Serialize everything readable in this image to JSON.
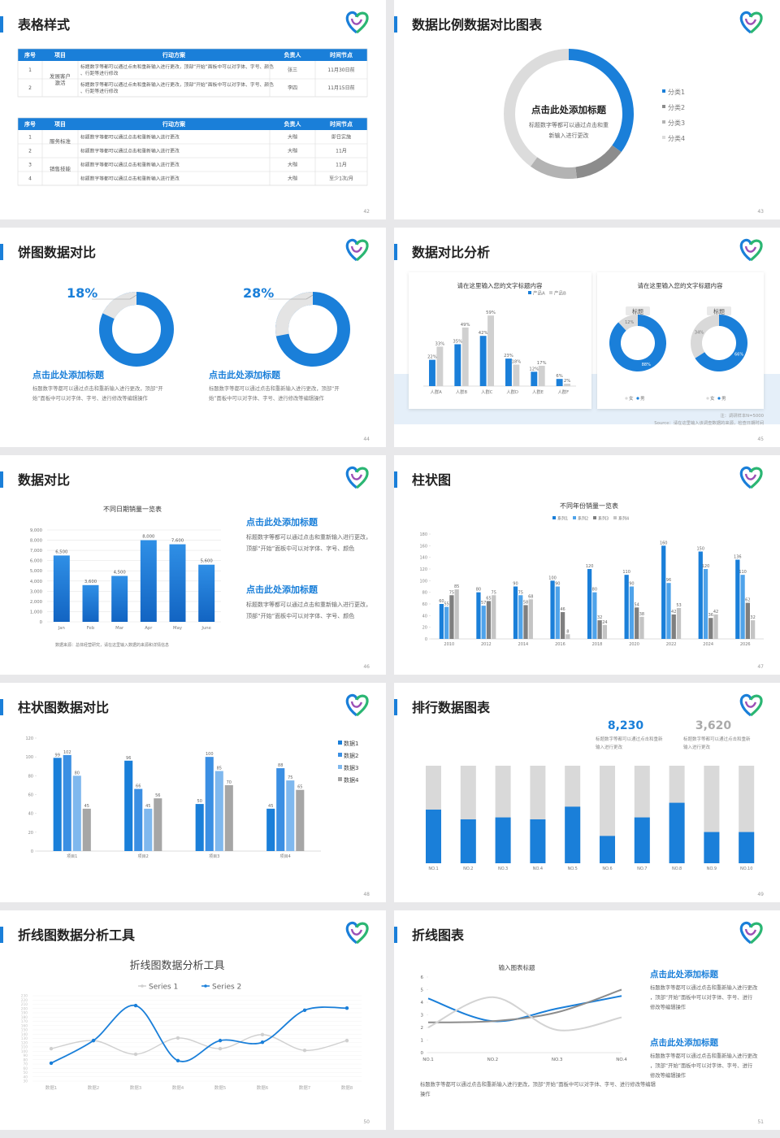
{
  "slides": [
    {
      "title": "表格样式",
      "page": "42",
      "tables": [
        {
          "headers": [
            "序号",
            "项目",
            "行动方案",
            "负责人",
            "时间节点"
          ],
          "groups": [
            {
              "name": "发展客户激活",
              "rows": [
                [
                  "1",
                  "标题数字等都可以通过点击和重新输入进行更改，顶部“开始”面板中可以对字体、字号、颜色、行距等进行修改",
                  "张三",
                  "11月30日前"
                ],
                [
                  "2",
                  "标题数字等都可以通过点击和重新输入进行更改，顶部“开始”面板中可以对字体、字号、颜色、行距等进行修改",
                  "李四",
                  "11月15日前"
                ]
              ]
            }
          ]
        },
        {
          "headers": [
            "序号",
            "项目",
            "行动方案",
            "负责人",
            "时间节点"
          ],
          "groups": [
            {
              "name": "服务标准",
              "rows": [
                [
                  "1",
                  "标题数字等都可以通过点击和重新输入进行更改",
                  "大咖",
                  "即日实施"
                ],
                [
                  "2",
                  "标题数字等都可以通过点击和重新输入进行更改",
                  "大咖",
                  "11月"
                ]
              ]
            },
            {
              "name": "销售技能",
              "rows": [
                [
                  "3",
                  "标题数字等都可以通过点击和重新输入进行更改",
                  "大咖",
                  "11月"
                ],
                [
                  "4",
                  "标题数字等都可以通过点击和重新输入进行更改",
                  "大咖",
                  "至少1次/月"
                ]
              ]
            }
          ]
        }
      ]
    },
    {
      "title": "数据比例数据对比图表",
      "page": "43",
      "chart": {
        "type": "donut",
        "title": "点击此处添加标题",
        "subtitle": "标题数字等都可以通过点击和重新输入进行更改",
        "categories": [
          "分类1",
          "分类2",
          "分类3",
          "分类4"
        ],
        "values": [
          35,
          13,
          12,
          40
        ],
        "colors": [
          "#1a7fd9",
          "#8c8c8c",
          "#b3b3b3",
          "#dcdcdc"
        ]
      }
    },
    {
      "title": "饼图数据对比",
      "page": "44",
      "items": [
        {
          "value": 18,
          "value_label": "18%",
          "title": "点击此处添加标题",
          "text": "标题数字等都可以通过点击和重新输入进行更改，顶部“开始”面板中可以对字体、字号、进行修改等编辑操作"
        },
        {
          "value": 28,
          "value_label": "28%",
          "title": "点击此处添加标题",
          "text": "标题数字等都可以通过点击和重新输入进行更改，顶部“开始”面板中可以对字体、字号、进行修改等编辑操作"
        }
      ]
    },
    {
      "title": "数据对比分析",
      "page": "45",
      "bar_chart": {
        "type": "bar",
        "title": "请在这里输入您的文字标题内容",
        "categories": [
          "人群A",
          "人群B",
          "人群C",
          "人群D",
          "人群E",
          "人群F"
        ],
        "ylim": [
          0,
          70
        ],
        "series": [
          {
            "name": "产品A",
            "color": "#1a7fd9",
            "values": [
              22,
              35,
              42,
              23,
              12,
              6
            ],
            "value_labels": [
              "22%",
              "35%",
              "42%",
              "23%",
              "12%",
              "6%"
            ]
          },
          {
            "name": "产品B",
            "color": "#d0d0d0",
            "values": [
              33,
              49,
              59,
              18,
              17,
              2
            ],
            "value_labels": [
              "33%",
              "49%",
              "59%",
              "18%",
              "17%",
              "2%"
            ]
          }
        ]
      },
      "donut_panel": {
        "title": "请在这里输入您的文字标题内容",
        "legend": [
          {
            "name": "女",
            "color": "#d9d9d9"
          },
          {
            "name": "男",
            "color": "#1a7fd9"
          }
        ],
        "donuts": [
          {
            "label": "标题",
            "values": [
              12,
              88
            ],
            "value_labels": [
              "12%",
              "88%"
            ]
          },
          {
            "label": "标题",
            "values": [
              34,
              66
            ],
            "value_labels": [
              "34%",
              "66%"
            ]
          }
        ]
      },
      "notes": [
        "注：调研样本N=5000",
        "Source：请在这里输入该调查数据的来源，检查日期时间"
      ]
    },
    {
      "title": "数据对比",
      "page": "46",
      "chart": {
        "type": "bar",
        "title": "不同日期销量一览表",
        "categories": [
          "Jan",
          "Feb",
          "Mar",
          "Apr",
          "May",
          "June"
        ],
        "values": [
          6500,
          3600,
          4500,
          8000,
          7600,
          5600
        ],
        "value_labels": [
          "6,500",
          "3,600",
          "4,500",
          "8,000",
          "7,600",
          "5,600"
        ],
        "color": "#1a7fd9",
        "ylim": [
          0,
          9000
        ],
        "yticks": [
          0,
          {
            "value": 1000,
            "label": "1,000"
          },
          {
            "value": 2000,
            "label": "2,000"
          },
          {
            "value": 3000,
            "label": "3,000"
          },
          {
            "value": 4000,
            "label": "4,000"
          },
          {
            "value": 5000,
            "label": "5,000"
          },
          {
            "value": 6000,
            "label": "6,000"
          },
          {
            "value": 7000,
            "label": "7,000"
          },
          {
            "value": 8000,
            "label": "8,000"
          },
          {
            "value": 9000,
            "label": "9,000"
          }
        ],
        "grid": true
      },
      "note": "数据来源：总体经营研究，请在这里输入数据的来源和详情信息",
      "text_blocks": [
        {
          "title": "点击此处添加标题",
          "text": "标题数字等都可以通过点击和重新输入进行更改，顶部“开始”面板中可以对字体、字号、颜色"
        },
        {
          "title": "点击此处添加标题",
          "text": "标题数字等都可以通过点击和重新输入进行更改，顶部“开始”面板中可以对字体、字号、颜色"
        }
      ]
    },
    {
      "title": "柱状图",
      "page": "47",
      "chart": {
        "type": "bar",
        "title": "不同年份销量一览表",
        "categories": [
          "2010",
          "2012",
          "2014",
          "2016",
          "2018",
          "2020",
          "2022",
          "2024",
          "2026"
        ],
        "ylim": [
          0,
          180
        ],
        "yticks": [
          0,
          20,
          40,
          60,
          80,
          100,
          120,
          140,
          160,
          180
        ],
        "series": [
          {
            "name": "系列1",
            "color": "#1a7fd9",
            "values": [
              60,
              80,
              90,
              100,
              120,
              110,
              160,
              150,
              136
            ]
          },
          {
            "name": "系列2",
            "color": "#4fa3ea",
            "values": [
              55,
              57,
              75,
              90,
              80,
              90,
              96,
              120,
              110
            ]
          },
          {
            "name": "系列3",
            "color": "#7f7f7f",
            "values": [
              75,
              65,
              58,
              46,
              32,
              54,
              42,
              36,
              62
            ]
          },
          {
            "name": "系列4",
            "color": "#c4c4c4",
            "values": [
              85,
              75,
              68,
              8,
              24,
              38,
              53,
              42,
              32
            ]
          }
        ]
      }
    },
    {
      "title": "柱状图数据对比",
      "page": "48",
      "chart": {
        "type": "bar",
        "categories": [
          "项目1",
          "项目2",
          "项目3",
          "项目4"
        ],
        "ylim": [
          0,
          120
        ],
        "yticks": [
          0,
          20,
          40,
          60,
          80,
          100,
          120
        ],
        "series": [
          {
            "name": "数据1",
            "color": "#1a7fd9",
            "values": [
              99,
              96,
              50,
              45
            ]
          },
          {
            "name": "数据2",
            "color": "#3b8fe3",
            "values": [
              102,
              66,
              100,
              88
            ]
          },
          {
            "name": "数据3",
            "color": "#7fb8ee",
            "values": [
              80,
              45,
              85,
              75
            ]
          },
          {
            "name": "数据4",
            "color": "#a6a6a6",
            "values": [
              45,
              56,
              70,
              65
            ]
          }
        ]
      }
    },
    {
      "title": "排行数据图表",
      "page": "49",
      "stats": [
        {
          "value": "8,230",
          "text": "标题数字等都可以通过点击和重新输入进行更改"
        },
        {
          "value": "3,620",
          "text": "标题数字等都可以通过点击和重新输入进行更改"
        }
      ],
      "chart": {
        "type": "progress_bar",
        "categories": [
          "NO.1",
          "NO.2",
          "NO.3",
          "NO.4",
          "NO.5",
          "NO.6",
          "NO.7",
          "NO.8",
          "NO.9",
          "NO.10"
        ],
        "values": [
          55,
          45,
          47,
          45,
          58,
          28,
          47,
          62,
          32,
          32
        ],
        "ylim": [
          0,
          100
        ],
        "color": "#1a7fd9",
        "track_color": "#d9d9d9"
      }
    },
    {
      "title": "折线图数据分析工具",
      "page": "50",
      "chart": {
        "type": "line",
        "title": "折线图数据分析工具",
        "categories": [
          "数据1",
          "数据2",
          "数据3",
          "数据4",
          "数据5",
          "数据6",
          "数据7",
          "数据8"
        ],
        "ylim": [
          30,
          230
        ],
        "yticks": [
          30,
          40,
          50,
          60,
          70,
          80,
          90,
          100,
          110,
          120,
          130,
          140,
          150,
          160,
          170,
          180,
          190,
          200,
          210,
          220,
          230
        ],
        "series": [
          {
            "name": "Series 1",
            "color": "#cfcfcf",
            "values": [
              106,
              125,
              93,
              131,
              106,
              139,
              102,
              125
            ]
          },
          {
            "name": "Series 2",
            "color": "#1a7fd9",
            "values": [
              72,
              125,
              207,
              78,
              125,
              121,
              196,
              201
            ]
          }
        ]
      }
    },
    {
      "title": "折线图表",
      "page": "51",
      "chart": {
        "type": "line",
        "title": "输入图表标题",
        "categories": [
          "NO.1",
          "NO.2",
          "NO.3",
          "NO.4"
        ],
        "ylim": [
          0,
          6
        ],
        "yticks": [
          0,
          1,
          2,
          3,
          4,
          5,
          6
        ],
        "series": [
          {
            "color": "#1a7fd9",
            "values": [
              4.3,
              2.5,
              3.5,
              4.5
            ]
          },
          {
            "color": "#8c8c8c",
            "values": [
              2.4,
              2.5,
              3.2,
              5.0
            ]
          },
          {
            "color": "#d3d3d3",
            "values": [
              2.0,
              4.4,
              1.8,
              2.8
            ]
          }
        ]
      },
      "text_blocks": [
        {
          "title": "点击此处添加标题",
          "text": "标题数字等都可以通过点击和重新输入进行更改，顶部“开始”面板中可以对字体、字号、进行修改等编辑操作"
        },
        {
          "title": "点击此处添加标题",
          "text": "标题数字等都可以通过点击和重新输入进行更改，顶部“开始”面板中可以对字体、字号、进行修改等编辑操作"
        }
      ],
      "note": "标题数字等都可以通过点击和重新输入进行更改，顶部“开始”面板中可以对字体、字号、进行修改等编辑操作"
    }
  ]
}
